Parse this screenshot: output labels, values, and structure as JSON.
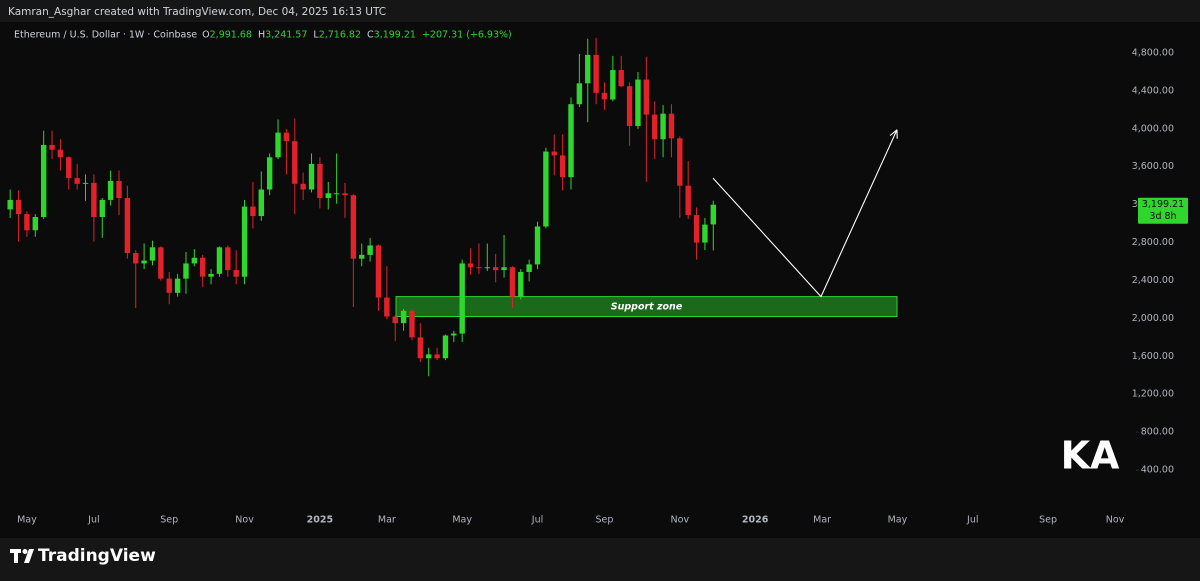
{
  "header": "Kamran_Asghar created with TradingView.com, Dec 04, 2025 16:13 UTC",
  "footer": "TradingView",
  "watermark": "KA",
  "chart_data": {
    "type": "candlestick",
    "title": "Ethereum / U.S. Dollar · 1W · Coinbase",
    "ohlc_letters": [
      "O",
      "H",
      "L",
      "C"
    ],
    "ohlc_value_labels": [
      "2,991.68",
      "3,241.57",
      "2,716.82",
      "3,199.21"
    ],
    "change_label": "+207.31 (+6.93%)",
    "categories": [
      null,
      null,
      "May",
      null,
      null,
      null,
      null,
      null,
      null,
      null,
      "Jul",
      null,
      null,
      null,
      null,
      null,
      null,
      null,
      null,
      "Sep",
      null,
      null,
      null,
      null,
      null,
      null,
      null,
      null,
      "Nov",
      null,
      null,
      null,
      null,
      null,
      null,
      null,
      null,
      "2025",
      null,
      null,
      null,
      null,
      null,
      null,
      null,
      "Mar",
      null,
      null,
      null,
      null,
      null,
      null,
      null,
      null,
      "May",
      null,
      null,
      null,
      null,
      null,
      null,
      null,
      null,
      "Jul",
      null,
      null,
      null,
      null,
      null,
      null,
      null,
      "Sep",
      null,
      null,
      null,
      null,
      null,
      null,
      null,
      null,
      "Nov",
      null,
      null,
      null,
      null,
      null,
      null,
      null,
      null,
      "2026",
      null,
      null,
      null,
      null,
      null,
      null,
      null,
      "Mar",
      null,
      null,
      null,
      null,
      null,
      null,
      null,
      null,
      "May",
      null,
      null,
      null,
      null,
      null,
      null,
      null,
      null,
      "Jul",
      null,
      null,
      null,
      null,
      null,
      null,
      null,
      null,
      "Sep",
      null,
      null,
      null,
      null,
      null,
      null,
      null,
      "Nov",
      null,
      null
    ],
    "open": [
      3150,
      3250,
      3100,
      2930,
      3070,
      3830,
      3780,
      3700,
      3480,
      3420,
      3430,
      3070,
      3250,
      3450,
      3270,
      2690,
      2580,
      2610,
      2750,
      2420,
      2270,
      2420,
      2580,
      2640,
      2440,
      2470,
      2750,
      2510,
      2440,
      3180,
      3080,
      3360,
      3700,
      3960,
      3870,
      3420,
      3360,
      3630,
      3270,
      3320,
      3320,
      3300,
      2630,
      2670,
      2770,
      2220,
      2020,
      1950,
      2080,
      1800,
      1580,
      1620,
      1580,
      1820,
      1840,
      2580,
      2540,
      2530,
      2540,
      2510,
      2540,
      2230,
      2490,
      2570,
      2970,
      3760,
      3720,
      3490,
      4260,
      4480,
      4780,
      4380,
      4310,
      4620,
      4450,
      4030,
      4520,
      4150,
      3890,
      4160,
      3900,
      3400,
      3090,
      2800,
      2991.68,
      null,
      null,
      null,
      null,
      null,
      null,
      null,
      null,
      null,
      null,
      null,
      null,
      null,
      null,
      null,
      null,
      null,
      null,
      null,
      null,
      null,
      null,
      null,
      null,
      null,
      null,
      null,
      null,
      null,
      null,
      null,
      null,
      null,
      null,
      null,
      null,
      null,
      null,
      null,
      null,
      null,
      null,
      null,
      null,
      null,
      null,
      null,
      null,
      null,
      null
    ],
    "high": [
      3360,
      3350,
      3130,
      3100,
      3980,
      3980,
      3890,
      3710,
      3630,
      3520,
      3520,
      3270,
      3560,
      3560,
      3400,
      2720,
      2790,
      2820,
      2760,
      2490,
      2470,
      2700,
      2730,
      2670,
      2520,
      2760,
      2770,
      2720,
      3250,
      3440,
      3550,
      3740,
      4100,
      4000,
      4110,
      3540,
      3740,
      3700,
      3440,
      3740,
      3430,
      3310,
      2790,
      2850,
      2780,
      2550,
      2030,
      2100,
      2100,
      1950,
      1690,
      1690,
      1830,
      1870,
      2620,
      2740,
      2790,
      2790,
      2680,
      2880,
      2550,
      2520,
      2620,
      3020,
      3800,
      3940,
      3940,
      4330,
      4790,
      4950,
      4960,
      4490,
      4770,
      4770,
      4490,
      4600,
      4760,
      4290,
      4250,
      4260,
      3920,
      3660,
      3170,
      3060,
      3241.57,
      null,
      null,
      null,
      null,
      null,
      null,
      null,
      null,
      null,
      null,
      null,
      null,
      null,
      null,
      null,
      null,
      null,
      null,
      null,
      null,
      null,
      null,
      null,
      null,
      null,
      null,
      null,
      null,
      null,
      null,
      null,
      null,
      null,
      null,
      null,
      null,
      null,
      null,
      null,
      null,
      null,
      null,
      null,
      null,
      null,
      null,
      null,
      null,
      null,
      null
    ],
    "low": [
      3060,
      2810,
      2860,
      2860,
      3050,
      3680,
      3560,
      3360,
      3360,
      3240,
      2810,
      2850,
      3190,
      3090,
      2630,
      2110,
      2520,
      2560,
      2400,
      2150,
      2230,
      2260,
      2550,
      2330,
      2360,
      2440,
      2440,
      2360,
      2360,
      2950,
      3030,
      3300,
      3680,
      3520,
      3100,
      3250,
      3330,
      3160,
      3150,
      3210,
      3060,
      2120,
      2550,
      2600,
      2080,
      1990,
      1760,
      1870,
      1770,
      1540,
      1390,
      1560,
      1560,
      1750,
      1750,
      2460,
      2470,
      2500,
      2380,
      2430,
      2110,
      2200,
      2390,
      2520,
      2950,
      3510,
      3350,
      3360,
      4230,
      4070,
      4260,
      4200,
      4290,
      4440,
      3820,
      4000,
      3440,
      3680,
      3700,
      3700,
      3060,
      3050,
      2620,
      2720,
      2716.82,
      null,
      null,
      null,
      null,
      null,
      null,
      null,
      null,
      null,
      null,
      null,
      null,
      null,
      null,
      null,
      null,
      null,
      null,
      null,
      null,
      null,
      null,
      null,
      null,
      null,
      null,
      null,
      null,
      null,
      null,
      null,
      null,
      null,
      null,
      null,
      null,
      null,
      null,
      null,
      null,
      null,
      null,
      null,
      null,
      null,
      null,
      null,
      null,
      null,
      null
    ],
    "close": [
      3250,
      3100,
      2930,
      3070,
      3830,
      3780,
      3700,
      3480,
      3420,
      3430,
      3070,
      3250,
      3450,
      3270,
      2690,
      2580,
      2610,
      2750,
      2420,
      2270,
      2420,
      2580,
      2640,
      2440,
      2470,
      2750,
      2510,
      2440,
      3180,
      3080,
      3360,
      3700,
      3960,
      3870,
      3420,
      3360,
      3630,
      3270,
      3320,
      3320,
      3300,
      2630,
      2670,
      2770,
      2220,
      2020,
      1950,
      2080,
      1800,
      1580,
      1620,
      1580,
      1820,
      1840,
      2580,
      2540,
      2530,
      2540,
      2510,
      2540,
      2230,
      2490,
      2570,
      2970,
      3760,
      3720,
      3490,
      4260,
      4480,
      4780,
      4380,
      4310,
      4620,
      4450,
      4030,
      4520,
      4150,
      3890,
      4160,
      3900,
      3400,
      3090,
      2800,
      2990,
      3199.21,
      null,
      null,
      null,
      null,
      null,
      null,
      null,
      null,
      null,
      null,
      null,
      null,
      null,
      null,
      null,
      null,
      null,
      null,
      null,
      null,
      null,
      null,
      null,
      null,
      null,
      null,
      null,
      null,
      null,
      null,
      null,
      null,
      null,
      null,
      null,
      null,
      null,
      null,
      null,
      null,
      null,
      null,
      null,
      null,
      null,
      null,
      null,
      null,
      null,
      null
    ],
    "up_color": "#2ed62e",
    "down_color": "#e3212b",
    "ylim": [
      0,
      5127
    ],
    "yticks": [
      {
        "value": 400,
        "label": "400.00"
      },
      {
        "value": 800,
        "label": "800.00"
      },
      {
        "value": 1200,
        "label": "1,200.00"
      },
      {
        "value": 1600,
        "label": "1,600.00"
      },
      {
        "value": 2000,
        "label": "2,000.00"
      },
      {
        "value": 2400,
        "label": "2,400.00"
      },
      {
        "value": 2800,
        "label": "2,800.00"
      },
      {
        "value": 3200,
        "label": "3,200.00"
      },
      {
        "value": 3600,
        "label": "3,600.00"
      },
      {
        "value": 4000,
        "label": "4,000.00"
      },
      {
        "value": 4400,
        "label": "4,400.00"
      },
      {
        "value": 4800,
        "label": "4,800.00"
      }
    ],
    "grid": false,
    "last_price_label": "3,199.21",
    "countdown": "3d 8h",
    "support_zone": {
      "label": "Support zone",
      "low": 2020,
      "high": 2230,
      "color": "#1f7a1f"
    },
    "projection": {
      "values": [
        3480,
        2230,
        3990
      ],
      "color": "#ffffff"
    }
  }
}
